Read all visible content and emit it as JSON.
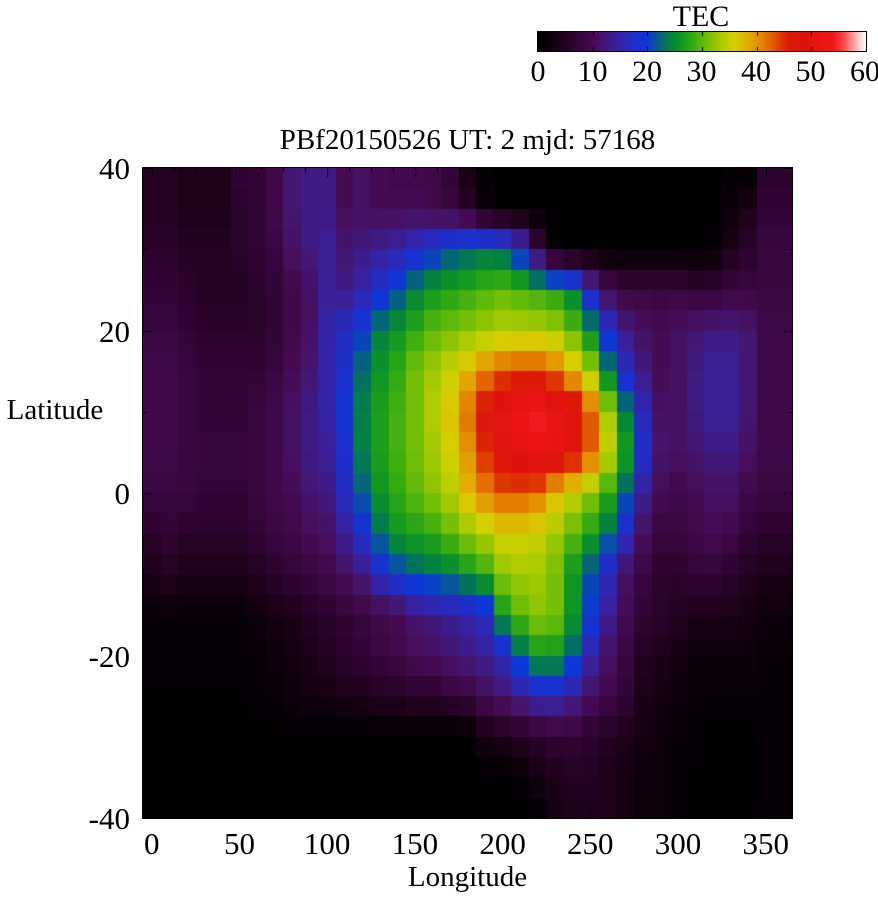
{
  "colorbar": {
    "title": "TEC",
    "min": 0,
    "max": 60,
    "tick_values": [
      0,
      10,
      20,
      30,
      40,
      50,
      60
    ]
  },
  "plot": {
    "title": "PBf20150526  UT: 2  mjd: 57168",
    "xlabel": "Longitude",
    "ylabel": "Latitude",
    "x_ticks": [
      0,
      50,
      100,
      150,
      200,
      250,
      300,
      350
    ],
    "y_ticks": [
      40,
      20,
      0,
      -20,
      -40
    ]
  },
  "chart_data": {
    "type": "heatmap",
    "title": "PBf20150526  UT: 2  mjd: 57168",
    "xlabel": "Longitude",
    "ylabel": "Latitude",
    "colorbar_label": "TEC",
    "xlim": [
      -5,
      365
    ],
    "ylim": [
      -40,
      40
    ],
    "value_range": [
      0,
      60
    ],
    "grid": {
      "lon_start": 0,
      "lon_step": 10,
      "lat_start": 40,
      "lat_step": -5,
      "cell_lon_deg": 10,
      "cell_lat_deg": 2.5
    },
    "palette_stops": [
      [
        0,
        "#000000"
      ],
      [
        4,
        "#1c0118"
      ],
      [
        8,
        "#3a0640"
      ],
      [
        10,
        "#470b54"
      ],
      [
        12,
        "#431670"
      ],
      [
        14,
        "#3a1f98"
      ],
      [
        16,
        "#2c28b6"
      ],
      [
        18,
        "#1c30cc"
      ],
      [
        20,
        "#0c38d8"
      ],
      [
        22,
        "#055e86"
      ],
      [
        24,
        "#038044"
      ],
      [
        26,
        "#0c9622"
      ],
      [
        28,
        "#30a814"
      ],
      [
        30,
        "#5eb90a"
      ],
      [
        32,
        "#8cc403"
      ],
      [
        34,
        "#b6cd00"
      ],
      [
        36,
        "#d6d000"
      ],
      [
        38,
        "#dfb400"
      ],
      [
        40,
        "#e49600"
      ],
      [
        42,
        "#e37000"
      ],
      [
        44,
        "#df4200"
      ],
      [
        46,
        "#da1a04"
      ],
      [
        49,
        "#e0120e"
      ],
      [
        52,
        "#ea1414"
      ],
      [
        54,
        "#f01418"
      ],
      [
        56,
        "#ff4848"
      ],
      [
        58,
        "#ffaaaa"
      ],
      [
        60,
        "#ffffff"
      ]
    ],
    "values": [
      [
        5,
        5,
        4,
        4,
        4,
        7,
        7,
        9,
        12,
        13,
        13,
        10,
        11,
        10,
        9,
        9,
        9,
        7,
        3,
        0,
        0,
        0,
        0,
        0,
        0,
        0,
        0,
        0,
        0,
        0,
        0,
        0,
        0,
        0,
        0,
        6,
        6
      ],
      [
        5,
        5,
        4,
        4,
        4,
        6,
        7,
        9,
        12,
        13,
        13,
        10,
        11,
        10,
        10,
        10,
        9,
        8,
        6,
        2,
        0,
        0,
        0,
        0,
        0,
        0,
        0,
        0,
        0,
        0,
        0,
        0,
        0,
        2,
        4,
        7,
        7
      ],
      [
        6,
        6,
        5,
        5,
        5,
        6,
        7,
        8,
        11,
        13,
        14,
        12,
        13,
        14,
        15,
        17,
        19,
        21,
        22,
        23,
        22,
        18,
        8,
        1,
        0,
        0,
        0,
        0,
        0,
        0,
        0,
        0,
        1,
        4,
        6,
        8,
        8
      ],
      [
        7,
        7,
        6,
        5,
        5,
        5,
        6,
        7,
        9,
        11,
        14,
        13,
        15,
        18,
        21,
        24,
        26,
        27,
        28,
        29,
        30,
        29,
        28,
        27,
        24,
        16,
        10,
        8,
        8,
        8,
        8,
        7,
        7,
        8,
        8,
        8,
        8
      ],
      [
        8,
        8,
        7,
        6,
        6,
        6,
        6,
        7,
        9,
        11,
        15,
        17,
        20,
        24,
        26,
        28,
        30,
        31,
        32,
        33,
        34,
        34,
        34,
        33,
        30,
        25,
        18,
        13,
        11,
        10,
        11,
        12,
        13,
        13,
        12,
        9,
        9
      ],
      [
        9,
        9,
        8,
        7,
        7,
        7,
        7,
        8,
        10,
        12,
        15,
        18,
        23,
        26,
        28,
        31,
        33,
        35,
        38,
        41,
        43,
        44,
        44,
        42,
        38,
        33,
        24,
        17,
        13,
        10,
        11,
        13,
        14,
        14,
        12,
        9,
        9
      ],
      [
        9,
        9,
        8,
        7,
        7,
        7,
        8,
        9,
        11,
        13,
        15,
        19,
        24,
        27,
        29,
        31,
        34,
        37,
        42,
        47,
        51,
        53,
        55,
        52,
        49,
        43,
        33,
        24,
        16,
        11,
        11,
        13,
        14,
        14,
        12,
        9,
        9
      ],
      [
        9,
        9,
        8,
        8,
        8,
        8,
        8,
        9,
        11,
        13,
        14,
        18,
        24,
        27,
        29,
        31,
        33,
        36,
        40,
        45,
        49,
        51,
        52,
        51,
        48,
        43,
        35,
        27,
        18,
        12,
        11,
        12,
        13,
        13,
        11,
        9,
        9
      ],
      [
        8,
        8,
        8,
        7,
        7,
        7,
        8,
        9,
        10,
        12,
        13,
        17,
        22,
        26,
        28,
        30,
        32,
        34,
        38,
        41,
        43,
        43,
        42,
        38,
        35,
        32,
        28,
        22,
        14,
        10,
        9,
        10,
        11,
        11,
        9,
        8,
        8
      ],
      [
        6,
        7,
        6,
        6,
        6,
        6,
        7,
        8,
        9,
        10,
        11,
        14,
        18,
        23,
        26,
        27,
        28,
        30,
        32,
        34,
        36,
        36,
        35,
        33,
        30,
        27,
        23,
        17,
        11,
        8,
        8,
        9,
        10,
        9,
        7,
        6,
        6
      ],
      [
        4,
        5,
        4,
        4,
        4,
        4,
        5,
        6,
        7,
        8,
        9,
        11,
        13,
        17,
        20,
        22,
        23,
        24,
        26,
        28,
        32,
        33,
        33,
        31,
        26,
        21,
        16,
        11,
        8,
        6,
        6,
        7,
        7,
        6,
        5,
        4,
        4
      ],
      [
        1,
        1,
        1,
        1,
        1,
        1,
        2,
        3,
        4,
        5,
        6,
        7,
        8,
        9,
        10,
        12,
        13,
        14,
        15,
        17,
        26,
        30,
        32,
        31,
        26,
        20,
        14,
        10,
        7,
        6,
        5,
        4,
        4,
        4,
        3,
        2,
        2
      ],
      [
        1,
        1,
        1,
        1,
        1,
        1,
        1,
        2,
        3,
        4,
        5,
        6,
        7,
        8,
        9,
        10,
        11,
        12,
        13,
        14,
        16,
        22,
        26,
        26,
        22,
        15,
        11,
        8,
        5,
        4,
        3,
        2,
        2,
        2,
        2,
        1,
        1
      ],
      [
        0,
        0,
        0,
        0,
        0,
        0,
        1,
        1,
        2,
        3,
        3,
        4,
        4,
        5,
        5,
        6,
        6,
        7,
        8,
        10,
        12,
        14,
        16,
        16,
        14,
        11,
        9,
        7,
        4,
        3,
        2,
        1,
        1,
        1,
        1,
        1,
        1
      ],
      [
        0,
        0,
        0,
        0,
        0,
        0,
        0,
        0,
        0,
        0,
        0,
        0,
        0,
        0,
        0,
        0,
        0,
        0,
        0,
        3,
        4,
        5,
        6,
        7,
        7,
        6,
        5,
        4,
        3,
        2,
        1,
        1,
        0,
        0,
        0,
        1,
        1
      ],
      [
        0,
        0,
        0,
        0,
        0,
        0,
        0,
        0,
        0,
        0,
        0,
        0,
        0,
        0,
        0,
        0,
        0,
        0,
        0,
        0,
        0,
        1,
        3,
        4,
        5,
        5,
        4,
        3,
        2,
        2,
        1,
        0,
        0,
        0,
        0,
        1,
        1
      ],
      [
        0,
        0,
        0,
        0,
        0,
        0,
        0,
        0,
        0,
        0,
        0,
        0,
        0,
        0,
        0,
        0,
        0,
        0,
        0,
        0,
        0,
        0,
        0,
        3,
        4,
        4,
        4,
        3,
        2,
        2,
        1,
        0,
        0,
        0,
        0,
        1,
        1
      ]
    ]
  }
}
